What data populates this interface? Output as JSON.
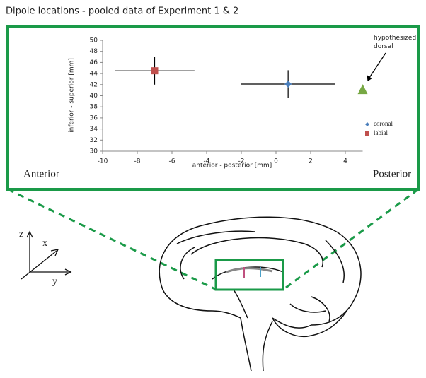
{
  "chart_data": {
    "type": "scatter",
    "title": "Dipole locations - pooled data of Experiment 1 & 2",
    "xlabel": "anterior - posterior [mm]",
    "ylabel": "inferior - superior [mm]",
    "xlim": [
      -10,
      5
    ],
    "ylim": [
      30,
      50
    ],
    "xticks": [
      -10,
      -8,
      -6,
      -4,
      -2,
      0,
      2,
      4
    ],
    "yticks": [
      30,
      32,
      34,
      36,
      38,
      40,
      42,
      44,
      46,
      48,
      50
    ],
    "series": [
      {
        "name": "coronal",
        "color": "#4a7ebb",
        "marker": "diamond",
        "x": [
          0.7
        ],
        "values": [
          42.1
        ],
        "xerr": [
          2.7
        ],
        "yerr": [
          2.5
        ]
      },
      {
        "name": "labial",
        "color": "#c0504d",
        "marker": "square",
        "x": [
          -7
        ],
        "values": [
          44.5
        ],
        "xerr": [
          2.3
        ],
        "yerr": [
          2.5
        ]
      }
    ],
    "hypothesis": {
      "label": "hypothesized dorsal",
      "x": 5,
      "y": 41.2,
      "color": "#77a844"
    },
    "side_labels": [
      "Anterior",
      "Posterior"
    ],
    "axes_icon": [
      "z",
      "x",
      "y"
    ]
  }
}
